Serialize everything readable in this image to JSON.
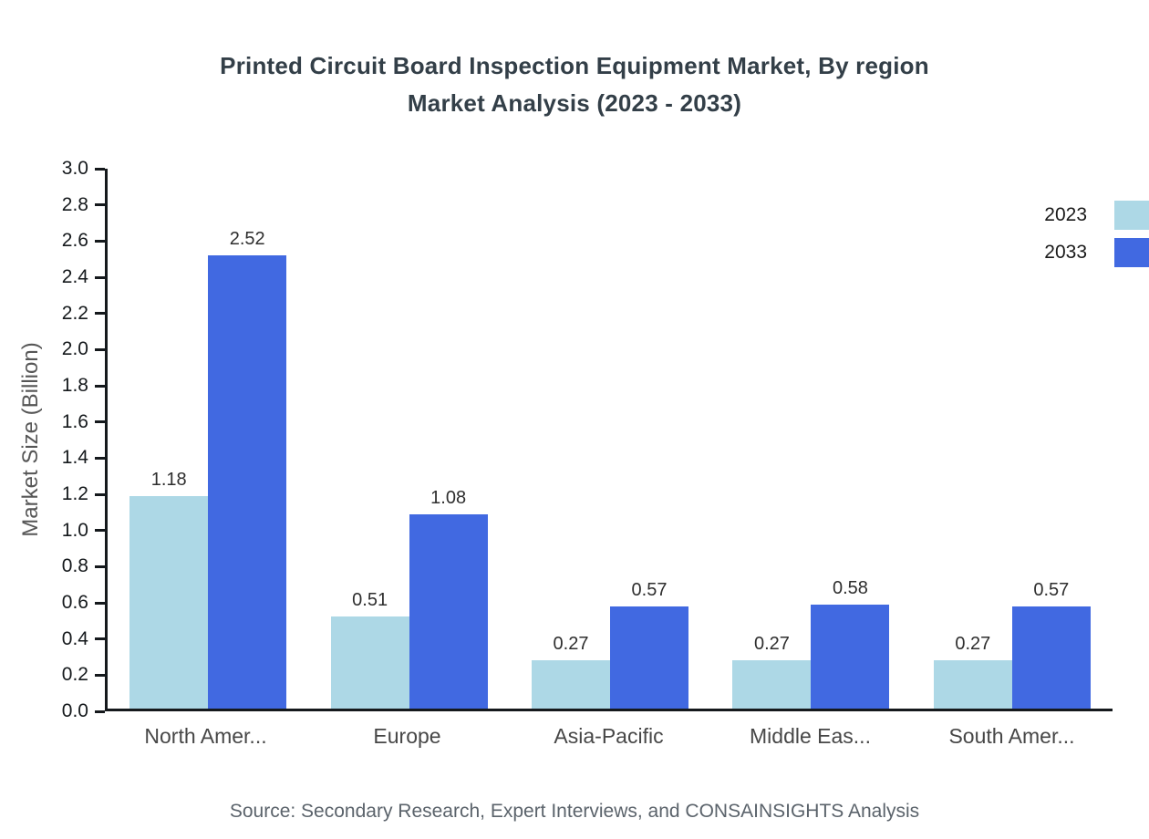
{
  "page": {
    "source_note": "Source: Secondary Research, Expert Interviews, and CONSAINSIGHTS Analysis"
  },
  "chart_data": {
    "type": "bar",
    "title": "Printed Circuit Board Inspection Equipment Market, By region Market Analysis (2023 - 2033)",
    "title_lines": [
      "Printed Circuit Board Inspection Equipment Market, By region",
      "Market Analysis (2023 - 2033)"
    ],
    "xlabel": "",
    "ylabel": "Market Size (Billion)",
    "ylim": [
      0,
      3.0
    ],
    "ytick_step": 0.2,
    "grid": false,
    "legend_position": "top-right",
    "value_labels": true,
    "categories": [
      "North Amer...",
      "Europe",
      "Asia-Pacific",
      "Middle Eas...",
      "South Amer..."
    ],
    "series": [
      {
        "name": "2023",
        "color": "#ADD8E6",
        "values": [
          1.18,
          0.51,
          0.27,
          0.27,
          0.27
        ]
      },
      {
        "name": "2033",
        "color": "#4169E1",
        "values": [
          2.52,
          1.08,
          0.57,
          0.58,
          0.57
        ]
      }
    ]
  }
}
